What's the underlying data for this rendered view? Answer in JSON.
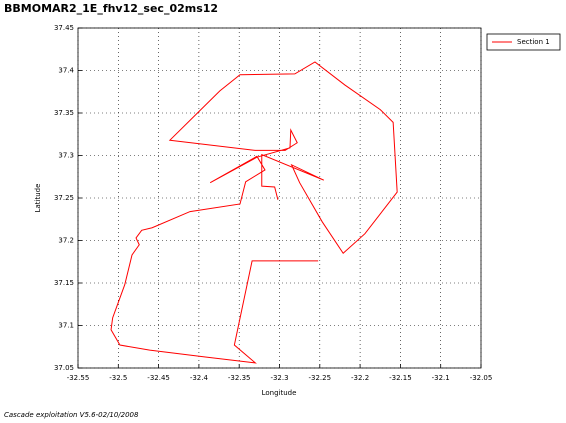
{
  "chart_data": {
    "type": "line",
    "title": "BBMOMAR2_1E_fhv12_sec_02ms12",
    "x_label": "Longitude",
    "y_label": "Latitude",
    "x": [
      -32.252,
      -32.334,
      -32.356,
      -32.33,
      -32.392,
      -32.461,
      -32.498,
      -32.509,
      -32.507,
      -32.492,
      -32.483,
      -32.474,
      -32.478,
      -32.471,
      -32.458,
      -32.411,
      -32.349,
      -32.342,
      -32.318,
      -32.328,
      -32.386,
      -32.328,
      -32.287,
      -32.286,
      -32.278,
      -32.293,
      -32.33,
      -32.436,
      -32.374,
      -32.349,
      -32.281,
      -32.256,
      -32.219,
      -32.175,
      -32.159,
      -32.154,
      -32.194,
      -32.221,
      -32.247,
      -32.275,
      -32.285,
      -32.245,
      -32.322,
      -32.322,
      -32.306,
      -32.302
    ],
    "series": [
      {
        "name": "Section 1",
        "color": "#ff0000",
        "values": [
          37.176,
          37.176,
          37.077,
          37.056,
          37.063,
          37.071,
          37.077,
          37.095,
          37.109,
          37.148,
          37.183,
          37.195,
          37.203,
          37.212,
          37.215,
          37.234,
          37.243,
          37.269,
          37.283,
          37.299,
          37.268,
          37.298,
          37.309,
          37.33,
          37.315,
          37.306,
          37.306,
          37.318,
          37.376,
          37.395,
          37.396,
          37.41,
          37.383,
          37.354,
          37.339,
          37.257,
          37.208,
          37.185,
          37.222,
          37.268,
          37.289,
          37.271,
          37.301,
          37.264,
          37.263,
          37.248
        ]
      }
    ],
    "xlim": [
      -32.55,
      -32.05
    ],
    "xticks": [
      -32.55,
      -32.5,
      -32.45,
      -32.4,
      -32.35,
      -32.3,
      -32.25,
      -32.2,
      -32.15,
      -32.1,
      -32.05
    ],
    "ylim": [
      37.05,
      37.45
    ],
    "yticks": [
      37.05,
      37.1,
      37.15,
      37.2,
      37.25,
      37.3,
      37.35,
      37.4,
      37.45
    ],
    "grid": true,
    "legend": "outside-right"
  },
  "footer": "Cascade exploitation V5.6-02/10/2008"
}
